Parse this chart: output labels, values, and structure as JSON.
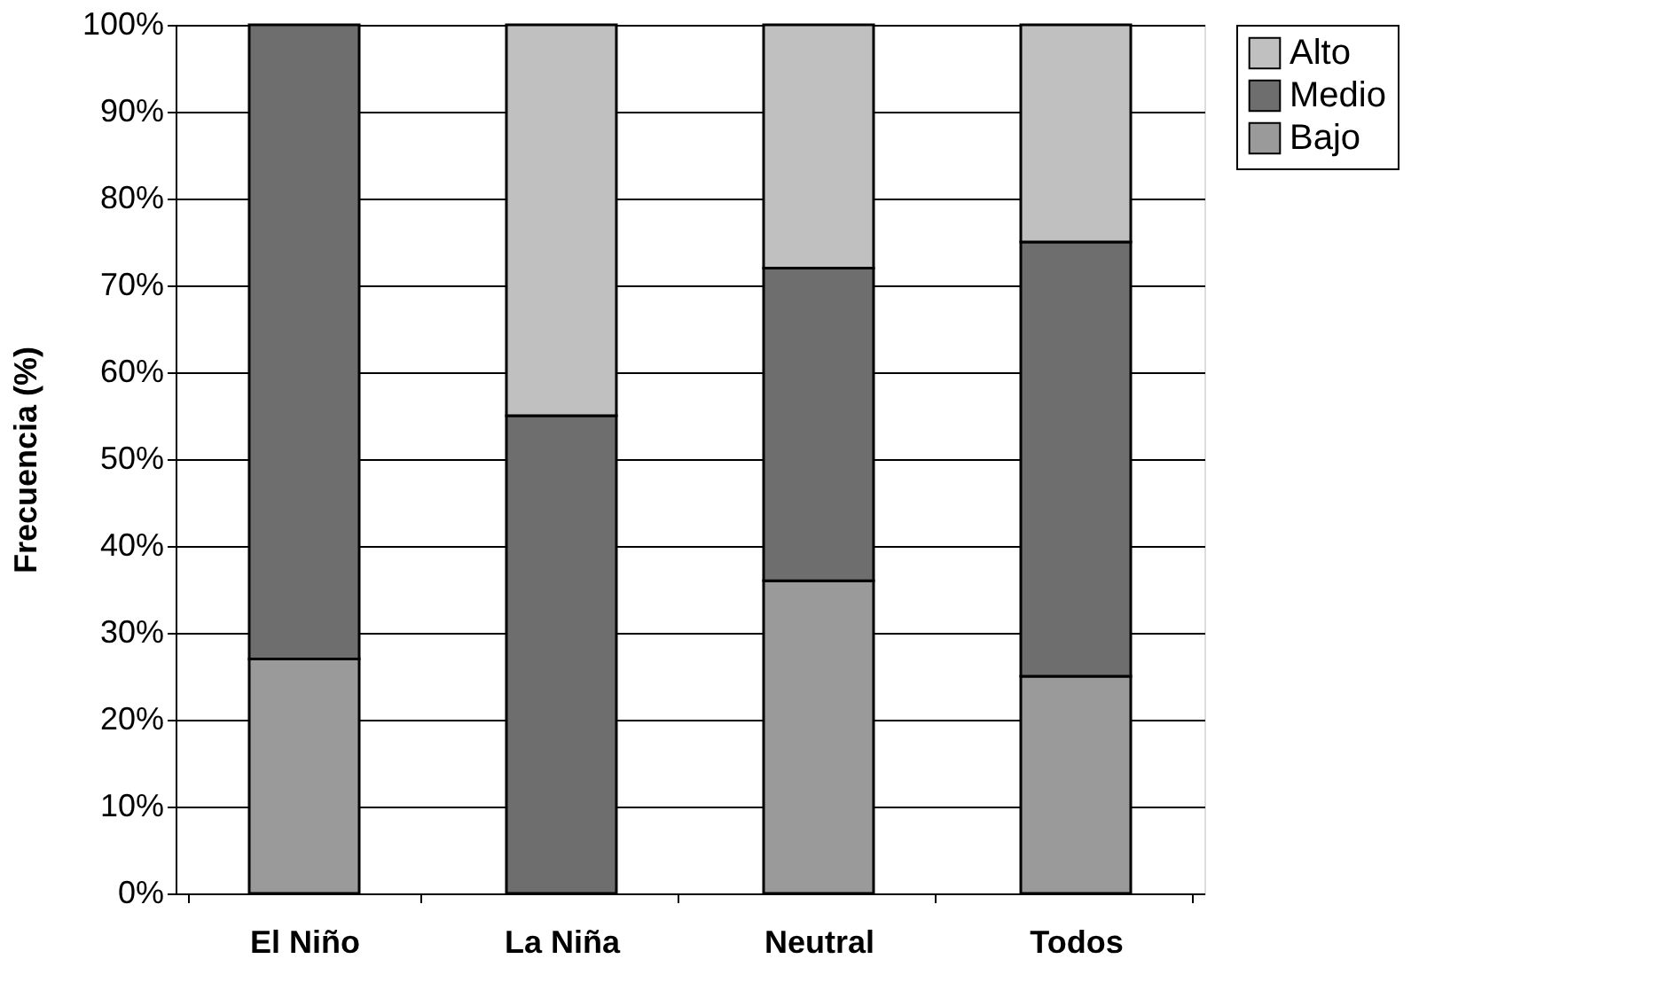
{
  "chart_data": {
    "type": "bar",
    "stacked": true,
    "ylabel": "Frecuencia (%)",
    "categories": [
      "El Niño",
      "La Niña",
      "Neutral",
      "Todos"
    ],
    "series": [
      {
        "name": "Bajo",
        "color": "#9a9a9a",
        "values": [
          27,
          null,
          36,
          25
        ]
      },
      {
        "name": "Medio",
        "color": "#6e6e6e",
        "values": [
          73,
          55,
          36,
          50
        ]
      },
      {
        "name": "Alto",
        "color": "#c0c0c0",
        "values": [
          null,
          45,
          28,
          25
        ]
      }
    ],
    "ylim": [
      0,
      100
    ],
    "yticks": [
      {
        "value": 0,
        "label": "0%"
      },
      {
        "value": 10,
        "label": "10%"
      },
      {
        "value": 20,
        "label": "20%"
      },
      {
        "value": 30,
        "label": "30%"
      },
      {
        "value": 40,
        "label": "40%"
      },
      {
        "value": 50,
        "label": "50%"
      },
      {
        "value": 60,
        "label": "60%"
      },
      {
        "value": 70,
        "label": "70%"
      },
      {
        "value": 80,
        "label": "80%"
      },
      {
        "value": 90,
        "label": "90%"
      },
      {
        "value": 100,
        "label": "100%"
      }
    ],
    "grid": "y",
    "legend": "right"
  }
}
